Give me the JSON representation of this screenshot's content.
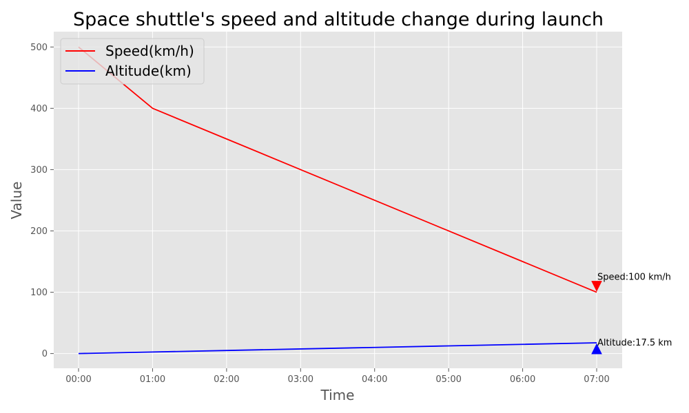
{
  "chart_data": {
    "type": "line",
    "title": "Space shuttle's speed and altitude change during launch",
    "xlabel": "Time",
    "ylabel": "Value",
    "x": [
      "00:00",
      "01:00",
      "02:00",
      "03:00",
      "04:00",
      "05:00",
      "06:00",
      "07:00"
    ],
    "ylim": [
      -24,
      525
    ],
    "yticks": [
      0,
      100,
      200,
      300,
      400,
      500
    ],
    "grid": true,
    "legend_position": "top-left",
    "series": [
      {
        "name": "Speed(km/h)",
        "color": "#ff0000",
        "values": [
          500,
          400,
          350,
          300,
          250,
          200,
          150,
          100
        ]
      },
      {
        "name": "Altitude(km)",
        "color": "#0000ff",
        "values": [
          0,
          2.5,
          5,
          7.5,
          10,
          12.5,
          15,
          17.5
        ]
      }
    ],
    "annotations": [
      {
        "text": "Speed:100 km/h",
        "x": "07:00",
        "y": 100,
        "marker": "triangle-down",
        "marker_y": 110,
        "color": "#ff0000"
      },
      {
        "text": "Altitude:17.5 km",
        "x": "07:00",
        "y": 17.5,
        "marker": "triangle-up",
        "marker_y": 7.5,
        "color": "#0000ff"
      }
    ]
  }
}
